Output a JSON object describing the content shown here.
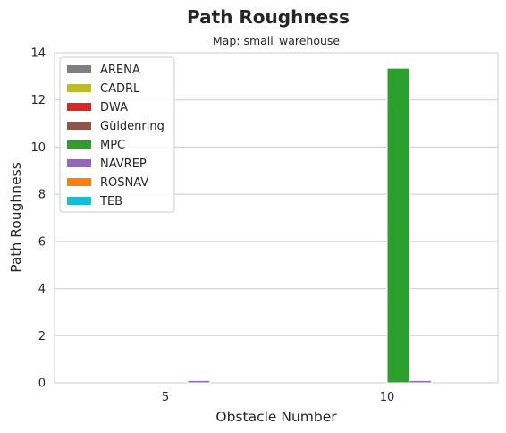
{
  "chart_data": {
    "type": "bar",
    "title": "Path Roughness",
    "subtitle": "Map: small_warehouse",
    "xlabel": "Obstacle Number",
    "ylabel": "Path Roughness",
    "categories": [
      "5",
      "10"
    ],
    "ylim": [
      0,
      14
    ],
    "yticks": [
      0,
      2,
      4,
      6,
      8,
      10,
      12,
      14
    ],
    "grid": true,
    "legend_position": "top-left",
    "series": [
      {
        "name": "ARENA",
        "color": "#7f7f7f",
        "values": [
          0,
          0
        ]
      },
      {
        "name": "CADRL",
        "color": "#bcbd22",
        "values": [
          0,
          0
        ]
      },
      {
        "name": "DWA",
        "color": "#d62728",
        "values": [
          0,
          0
        ]
      },
      {
        "name": "Güldenring",
        "color": "#8c564b",
        "values": [
          0,
          0
        ]
      },
      {
        "name": "MPC",
        "color": "#2ca02c",
        "values": [
          0,
          13.35
        ]
      },
      {
        "name": "NAVREP",
        "color": "#9467bd",
        "values": [
          0.1,
          0.1
        ]
      },
      {
        "name": "ROSNAV",
        "color": "#ff7f0e",
        "values": [
          0,
          0
        ]
      },
      {
        "name": "TEB",
        "color": "#17becf",
        "values": [
          0,
          0
        ]
      }
    ]
  }
}
